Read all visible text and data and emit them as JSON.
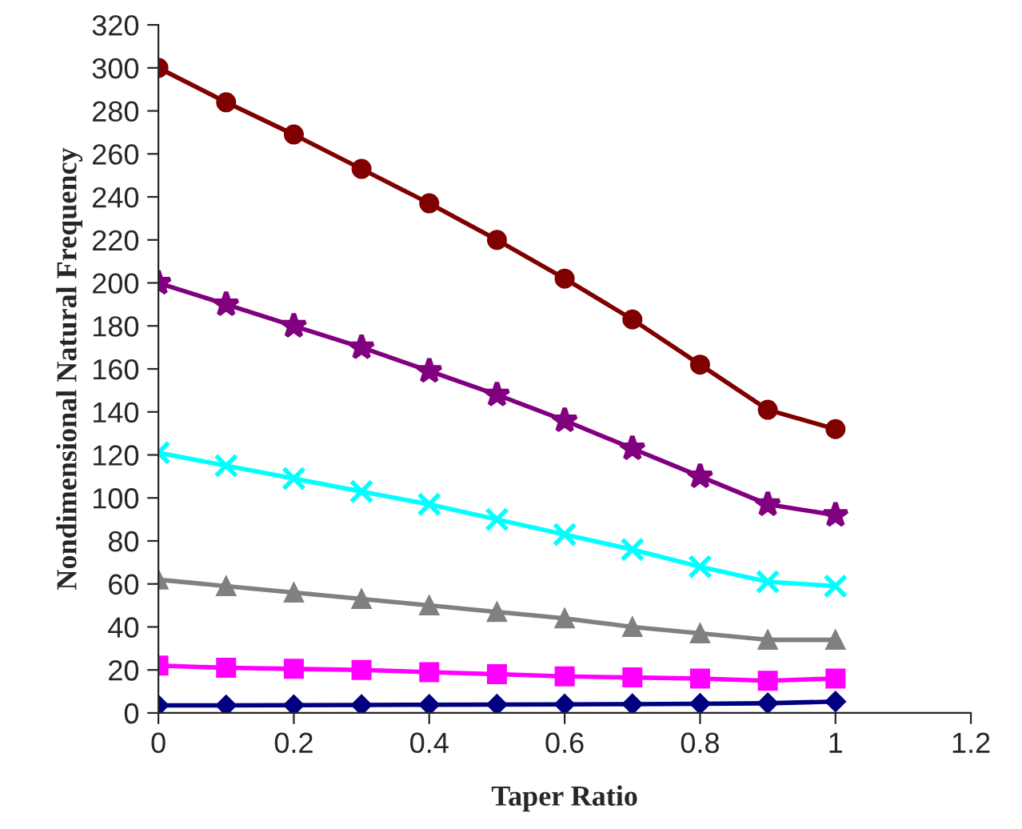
{
  "chart_data": {
    "type": "line",
    "xlabel": "Taper Ratio",
    "ylabel": "Nondimensional Natural Frequency",
    "x": [
      0,
      0.1,
      0.2,
      0.3,
      0.4,
      0.5,
      0.6,
      0.7,
      0.8,
      0.9,
      1
    ],
    "xlim": [
      0,
      1.2
    ],
    "xticks": [
      0,
      0.2,
      0.4,
      0.6,
      0.8,
      1,
      1.2
    ],
    "ylim": [
      0,
      320
    ],
    "yticks": [
      0,
      20,
      40,
      60,
      80,
      100,
      120,
      140,
      160,
      180,
      200,
      220,
      240,
      260,
      280,
      300,
      320
    ],
    "grid": false,
    "legend": false,
    "line_style": "solid",
    "series": [
      {
        "color": "#000080",
        "marker": "diamond",
        "values": [
          3.5,
          3.5,
          3.6,
          3.7,
          3.8,
          3.9,
          4,
          4.1,
          4.3,
          4.5,
          5.3
        ]
      },
      {
        "color": "#ff00ff",
        "marker": "square",
        "values": [
          22,
          21,
          20.5,
          20,
          19,
          18,
          17,
          16.5,
          16,
          15,
          16
        ]
      },
      {
        "color": "#808080",
        "marker": "triangle",
        "values": [
          62,
          59,
          56,
          53,
          50,
          47,
          44,
          40,
          37,
          34,
          34
        ]
      },
      {
        "color": "#00ffff",
        "marker": "cross",
        "values": [
          121,
          115,
          109,
          103,
          97,
          90,
          83,
          76,
          68,
          61,
          59
        ]
      },
      {
        "color": "#800080",
        "marker": "star",
        "values": [
          200,
          190,
          180,
          170,
          159,
          148,
          136,
          123,
          110,
          97,
          92
        ]
      },
      {
        "color": "#800000",
        "marker": "circle",
        "values": [
          300,
          284,
          269,
          253,
          237,
          220,
          202,
          183,
          162,
          141,
          132
        ]
      }
    ]
  }
}
